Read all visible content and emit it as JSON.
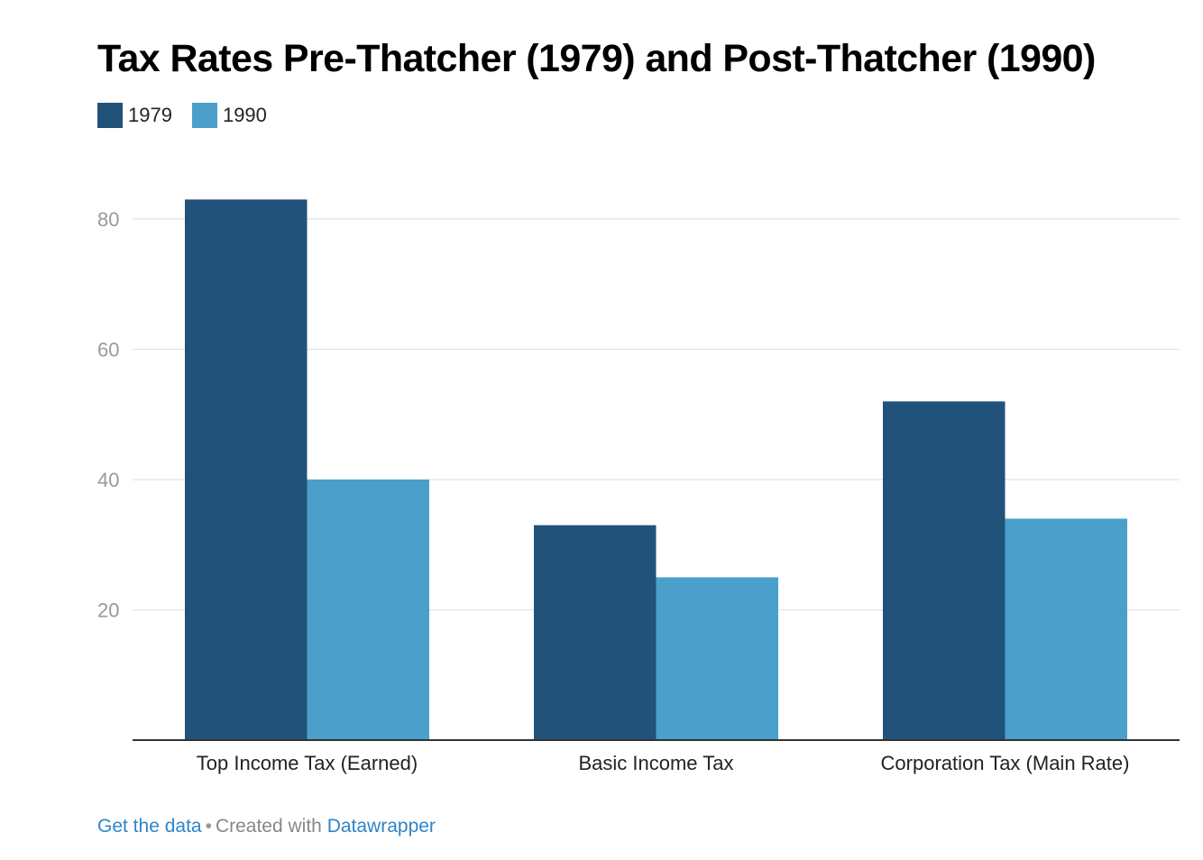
{
  "colors": {
    "series_1979": "#21527a",
    "series_1990": "#4ba0cb",
    "grid": "#e2e2e2",
    "axis": "#333333",
    "tick_text": "#999999",
    "link": "#2f85c8"
  },
  "footer": {
    "get_data": "Get the data",
    "separator": "•",
    "created_with": "Created with",
    "datawrapper": "Datawrapper"
  },
  "chart_data": {
    "type": "bar",
    "title": "Tax Rates Pre-Thatcher (1979) and Post-Thatcher (1990)",
    "categories": [
      "Top Income Tax (Earned)",
      "Basic Income Tax",
      "Corporation Tax (Main Rate)"
    ],
    "series": [
      {
        "name": "1979",
        "values": [
          83,
          33,
          52
        ]
      },
      {
        "name": "1990",
        "values": [
          40,
          25,
          34
        ]
      }
    ],
    "xlabel": "",
    "ylabel": "",
    "ylim": [
      0,
      80
    ],
    "yticks": [
      20,
      40,
      60,
      80
    ],
    "grid": true,
    "legend": "top-left"
  }
}
